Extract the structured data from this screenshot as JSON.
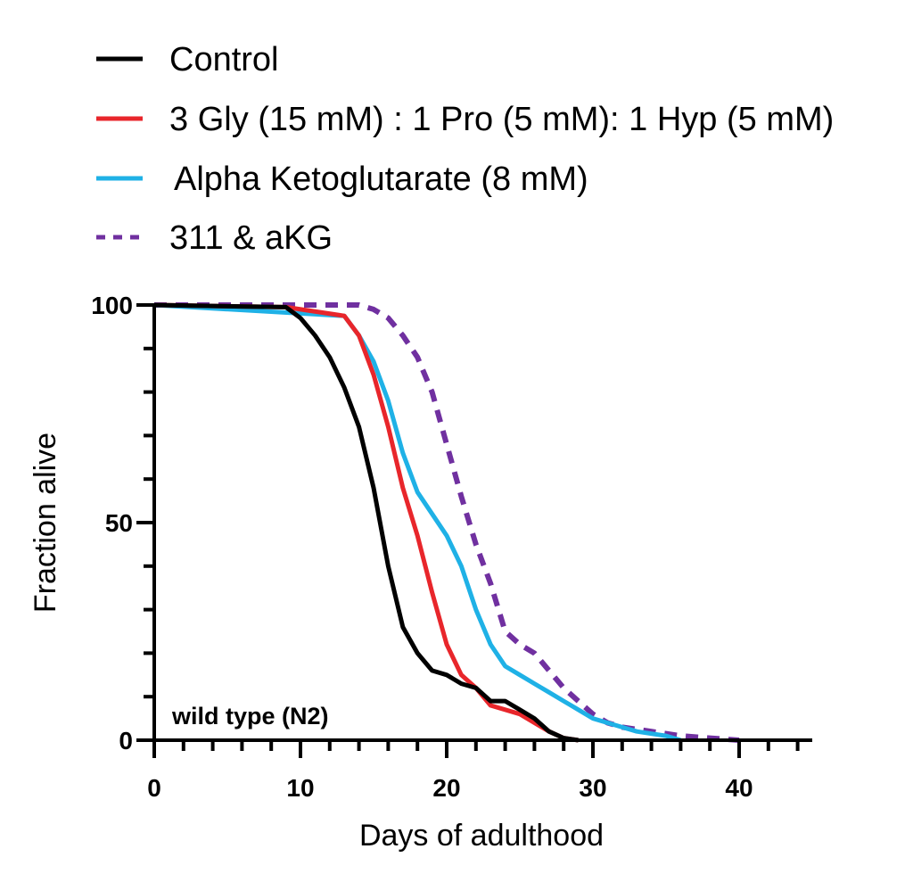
{
  "chart_data": {
    "type": "line",
    "title": "",
    "xlabel": "Days of adulthood",
    "ylabel": "Fraction alive",
    "xlim": [
      0,
      45
    ],
    "ylim": [
      0,
      100
    ],
    "x_major_ticks": [
      0,
      10,
      20,
      30,
      40
    ],
    "x_minor_step": 2,
    "y_major_ticks": [
      0,
      50,
      100
    ],
    "y_minor_step": 10,
    "grid": false,
    "legend_position": "top-left, above plot",
    "annotation": "wild type (N2)",
    "series": [
      {
        "name": "Control",
        "color": "#000000",
        "dash": false,
        "x": [
          0,
          9,
          10,
          11,
          12,
          13,
          14,
          15,
          16,
          17,
          18,
          19,
          20,
          21,
          22,
          23,
          24,
          25,
          26,
          27,
          28,
          29
        ],
        "y": [
          100,
          99.5,
          97,
          93,
          88,
          81,
          72,
          58,
          40,
          26,
          20,
          16,
          15,
          13,
          12,
          9,
          9,
          7,
          5,
          2,
          0.5,
          0
        ]
      },
      {
        "name": "3 Gly (15 mM) : 1 Pro (5 mM): 1 Hyp (5 mM)",
        "color": "#e8262b",
        "dash": false,
        "x": [
          0,
          9,
          13,
          14,
          15,
          16,
          17,
          18,
          19,
          20,
          21,
          22,
          23,
          24,
          25,
          26,
          27,
          28,
          29
        ],
        "y": [
          100,
          99.5,
          97.5,
          93,
          84,
          72,
          58,
          47,
          34,
          22,
          15,
          12,
          8,
          7,
          6,
          4,
          2,
          0.5,
          0
        ]
      },
      {
        "name": "Alpha Ketoglutarate (8 mM)",
        "color": "#1fb1e6",
        "dash": false,
        "x": [
          0,
          13,
          14,
          15,
          16,
          17,
          18,
          19,
          20,
          21,
          22,
          23,
          24,
          25,
          26,
          27,
          28,
          29,
          30,
          31,
          32,
          33,
          34,
          35,
          36
        ],
        "y": [
          100,
          97.5,
          93,
          87,
          78,
          66,
          57,
          52,
          47,
          40,
          30,
          22,
          17,
          15,
          13,
          11,
          9,
          7,
          5,
          4,
          3,
          2,
          1.5,
          1,
          0
        ]
      },
      {
        "name": "311 & aKG",
        "color": "#7030a0",
        "dash": true,
        "x": [
          0,
          14,
          15,
          16,
          17,
          18,
          19,
          20,
          21,
          22,
          23,
          24,
          25,
          26,
          27,
          28,
          29,
          30,
          31,
          32,
          34,
          36,
          38,
          40
        ],
        "y": [
          100,
          100,
          99,
          97,
          93,
          88,
          80,
          68,
          56,
          45,
          36,
          25,
          22,
          20,
          16,
          12,
          9,
          6,
          4,
          3,
          2,
          1,
          0.5,
          0
        ]
      }
    ]
  }
}
